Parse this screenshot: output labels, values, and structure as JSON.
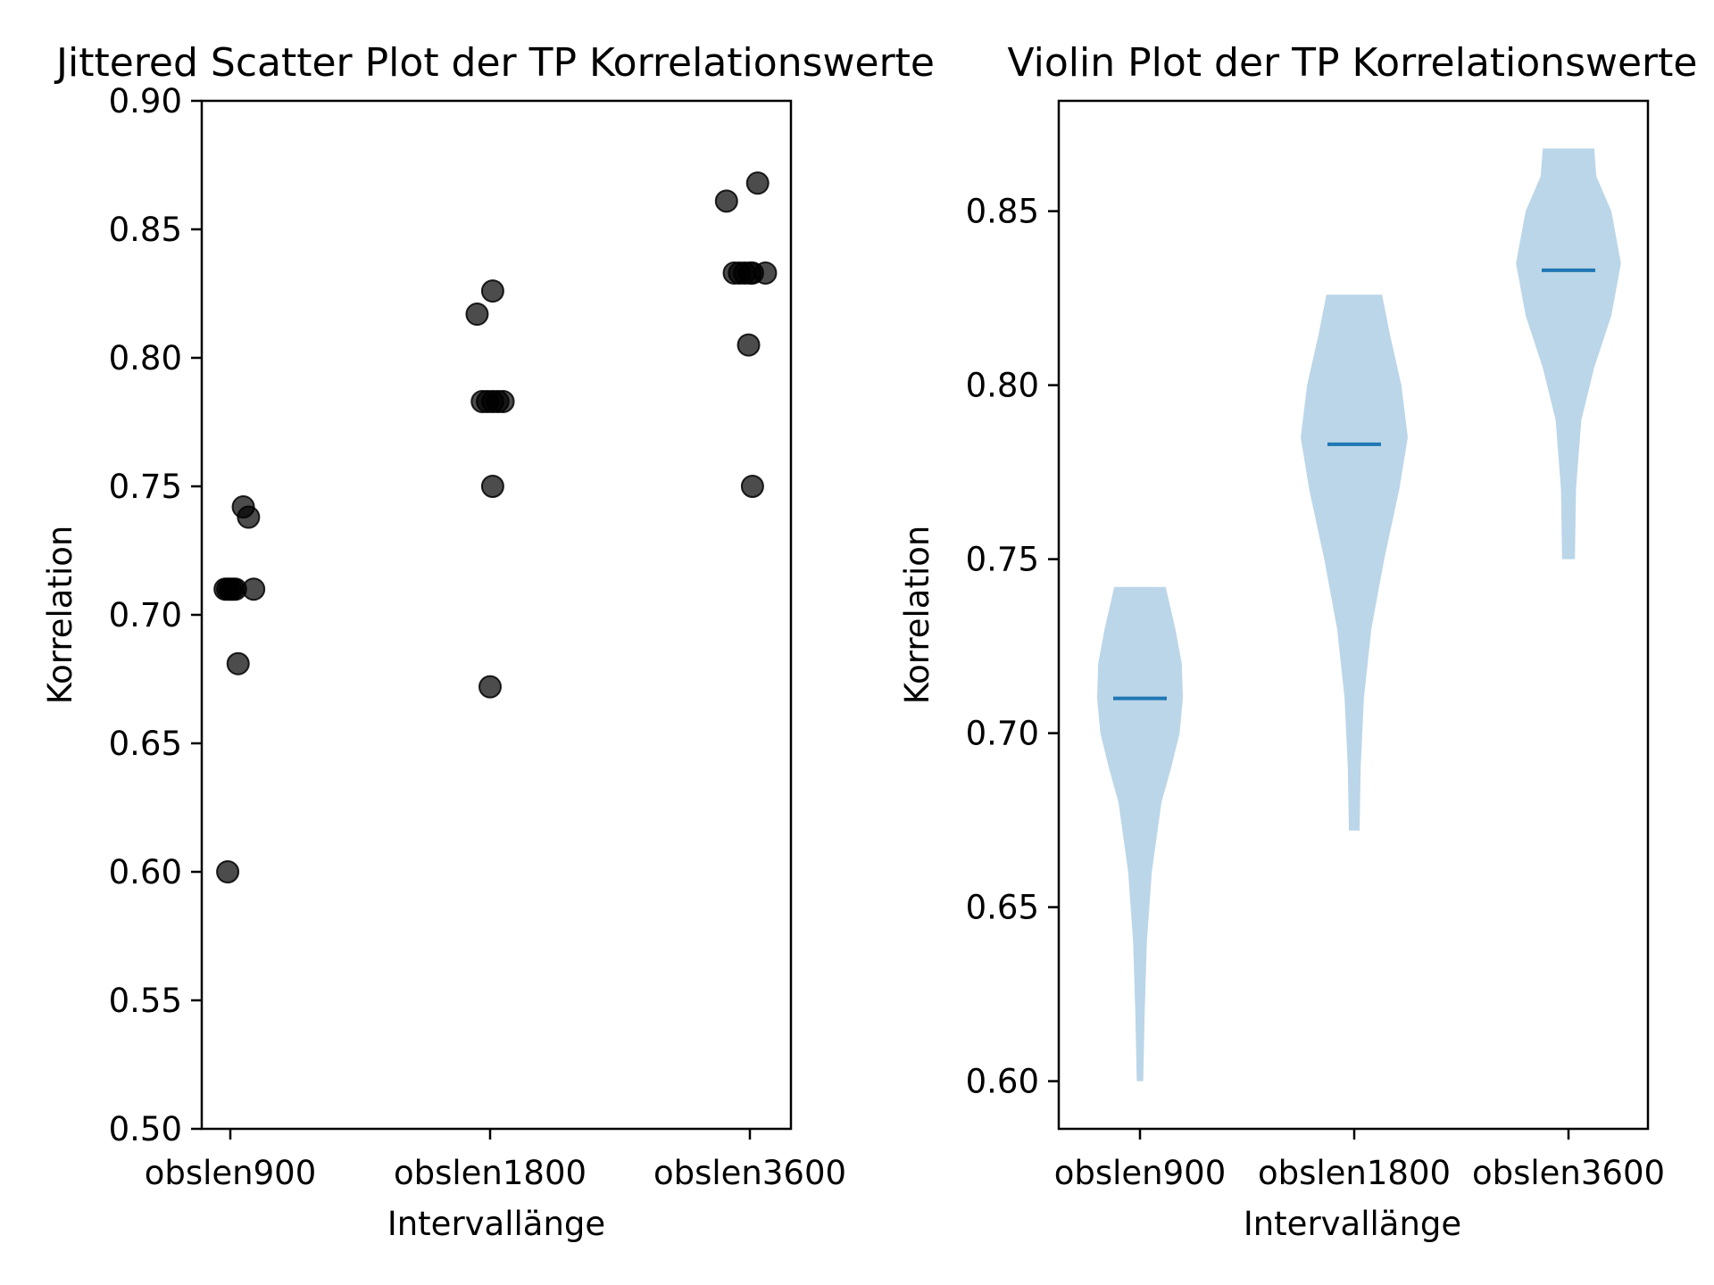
{
  "chart_data": [
    {
      "type": "scatter",
      "title": "Jittered Scatter Plot der TP Korrelationswerte",
      "xlabel": "Intervallänge",
      "ylabel": "Korrelation",
      "categories": [
        "obslen900",
        "obslen1800",
        "obslen3600"
      ],
      "ylim": [
        0.5,
        0.9
      ],
      "yticks": [
        "0.50",
        "0.55",
        "0.60",
        "0.65",
        "0.70",
        "0.75",
        "0.80",
        "0.85",
        "0.90"
      ],
      "grid": false,
      "marker_color": "#000000",
      "marker_alpha": 0.7,
      "points": [
        {
          "category": "obslen900",
          "jitter": -0.01,
          "y": 0.6
        },
        {
          "category": "obslen900",
          "jitter": 0.03,
          "y": 0.681
        },
        {
          "category": "obslen900",
          "jitter": -0.02,
          "y": 0.71
        },
        {
          "category": "obslen900",
          "jitter": -0.01,
          "y": 0.71
        },
        {
          "category": "obslen900",
          "jitter": 0.0,
          "y": 0.71
        },
        {
          "category": "obslen900",
          "jitter": 0.01,
          "y": 0.71
        },
        {
          "category": "obslen900",
          "jitter": 0.02,
          "y": 0.71
        },
        {
          "category": "obslen900",
          "jitter": 0.09,
          "y": 0.71
        },
        {
          "category": "obslen900",
          "jitter": 0.07,
          "y": 0.738
        },
        {
          "category": "obslen900",
          "jitter": 0.05,
          "y": 0.742
        },
        {
          "category": "obslen1800",
          "jitter": 0.0,
          "y": 0.672
        },
        {
          "category": "obslen1800",
          "jitter": 0.01,
          "y": 0.75
        },
        {
          "category": "obslen1800",
          "jitter": -0.03,
          "y": 0.783
        },
        {
          "category": "obslen1800",
          "jitter": -0.01,
          "y": 0.783
        },
        {
          "category": "obslen1800",
          "jitter": 0.01,
          "y": 0.783
        },
        {
          "category": "obslen1800",
          "jitter": 0.03,
          "y": 0.783
        },
        {
          "category": "obslen1800",
          "jitter": 0.05,
          "y": 0.783
        },
        {
          "category": "obslen1800",
          "jitter": -0.05,
          "y": 0.817
        },
        {
          "category": "obslen1800",
          "jitter": 0.01,
          "y": 0.826
        },
        {
          "category": "obslen3600",
          "jitter": 0.01,
          "y": 0.75
        },
        {
          "category": "obslen3600",
          "jitter": -0.005,
          "y": 0.805
        },
        {
          "category": "obslen3600",
          "jitter": -0.06,
          "y": 0.833
        },
        {
          "category": "obslen3600",
          "jitter": -0.04,
          "y": 0.833
        },
        {
          "category": "obslen3600",
          "jitter": -0.02,
          "y": 0.833
        },
        {
          "category": "obslen3600",
          "jitter": 0.0,
          "y": 0.833
        },
        {
          "category": "obslen3600",
          "jitter": 0.01,
          "y": 0.833
        },
        {
          "category": "obslen3600",
          "jitter": 0.06,
          "y": 0.833
        },
        {
          "category": "obslen3600",
          "jitter": -0.09,
          "y": 0.861
        },
        {
          "category": "obslen3600",
          "jitter": 0.03,
          "y": 0.868
        }
      ]
    },
    {
      "type": "violin",
      "title": "Violin Plot der TP Korrelationswerte",
      "xlabel": "Intervallänge",
      "ylabel": "Korrelation",
      "categories": [
        "obslen900",
        "obslen1800",
        "obslen3600"
      ],
      "ylim": [
        0.5863,
        0.8817
      ],
      "yticks": [
        "0.60",
        "0.65",
        "0.70",
        "0.75",
        "0.80",
        "0.85"
      ],
      "grid": false,
      "fill_color": "#1f77b4",
      "fill_alpha": 0.3,
      "median_color": "#1f77b4",
      "violins": [
        {
          "category": "obslen900",
          "min": 0.6,
          "max": 0.742,
          "median": 0.71,
          "half_width": [
            [
              0.6,
              0.015
            ],
            [
              0.62,
              0.022
            ],
            [
              0.64,
              0.032
            ],
            [
              0.66,
              0.055
            ],
            [
              0.68,
              0.1
            ],
            [
              0.69,
              0.145
            ],
            [
              0.7,
              0.185
            ],
            [
              0.71,
              0.2
            ],
            [
              0.72,
              0.195
            ],
            [
              0.73,
              0.165
            ],
            [
              0.742,
              0.12
            ]
          ]
        },
        {
          "category": "obslen1800",
          "min": 0.672,
          "max": 0.826,
          "median": 0.783,
          "half_width": [
            [
              0.672,
              0.025
            ],
            [
              0.69,
              0.03
            ],
            [
              0.71,
              0.045
            ],
            [
              0.73,
              0.08
            ],
            [
              0.75,
              0.14
            ],
            [
              0.77,
              0.21
            ],
            [
              0.785,
              0.25
            ],
            [
              0.8,
              0.22
            ],
            [
              0.815,
              0.165
            ],
            [
              0.826,
              0.13
            ]
          ]
        },
        {
          "category": "obslen3600",
          "min": 0.75,
          "max": 0.868,
          "median": 0.833,
          "half_width": [
            [
              0.75,
              0.03
            ],
            [
              0.77,
              0.035
            ],
            [
              0.79,
              0.06
            ],
            [
              0.805,
              0.12
            ],
            [
              0.82,
              0.2
            ],
            [
              0.835,
              0.245
            ],
            [
              0.85,
              0.2
            ],
            [
              0.86,
              0.13
            ],
            [
              0.868,
              0.12
            ]
          ]
        }
      ]
    }
  ]
}
